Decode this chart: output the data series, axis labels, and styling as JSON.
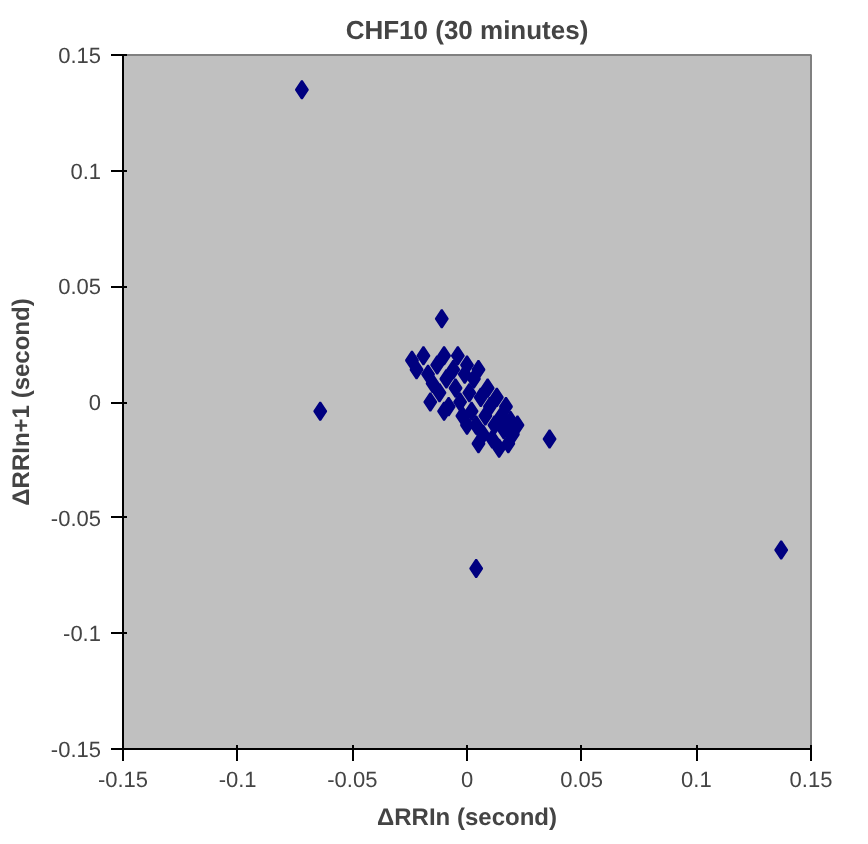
{
  "chart_data": {
    "type": "scatter",
    "title": "CHF10 (30 minutes)",
    "xlabel": "ΔRRIn (second)",
    "ylabel": "ΔRRIn+1 (second)",
    "xlim": [
      -0.15,
      0.15
    ],
    "ylim": [
      -0.15,
      0.15
    ],
    "xticks": [
      -0.15,
      -0.1,
      -0.05,
      0,
      0.05,
      0.1,
      0.15
    ],
    "yticks": [
      -0.15,
      -0.1,
      -0.05,
      0,
      0.05,
      0.1,
      0.15
    ],
    "marker": "diamond",
    "grid": false,
    "series": [
      {
        "color": "#000080",
        "x": [
          -0.072,
          -0.064,
          -0.011,
          0.004,
          0.036,
          0.137,
          -0.024,
          -0.022,
          -0.019,
          -0.017,
          -0.015,
          -0.013,
          -0.012,
          -0.01,
          -0.009,
          -0.008,
          -0.006,
          -0.005,
          -0.004,
          -0.003,
          -0.002,
          -0.001,
          0.0,
          0.001,
          0.002,
          0.003,
          0.004,
          0.005,
          0.006,
          0.007,
          0.008,
          0.009,
          0.01,
          0.011,
          0.012,
          0.013,
          0.014,
          0.015,
          0.016,
          0.017,
          0.018,
          0.019,
          0.02,
          0.022,
          0.005,
          -0.01,
          -0.016,
          0.0
        ],
        "values": [
          0.135,
          -0.004,
          0.036,
          -0.072,
          -0.016,
          -0.064,
          0.018,
          0.014,
          0.02,
          0.012,
          0.008,
          0.016,
          0.004,
          0.02,
          0.01,
          -0.002,
          0.014,
          0.006,
          0.02,
          0.0,
          -0.006,
          0.012,
          0.016,
          0.004,
          -0.004,
          0.01,
          -0.01,
          0.014,
          0.002,
          -0.014,
          -0.006,
          0.006,
          -0.002,
          -0.016,
          -0.01,
          0.002,
          -0.02,
          -0.006,
          -0.012,
          -0.002,
          -0.018,
          -0.008,
          -0.014,
          -0.01,
          -0.018,
          -0.004,
          0.0,
          -0.01
        ]
      }
    ]
  }
}
